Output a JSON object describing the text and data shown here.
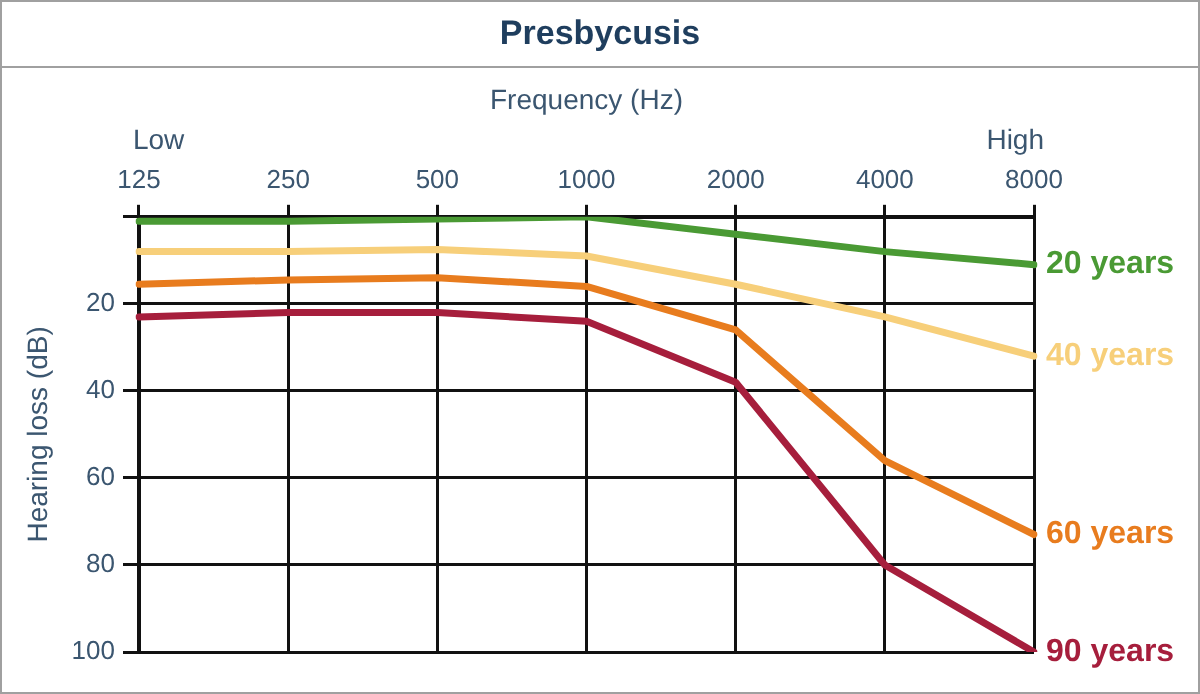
{
  "chart_data": {
    "type": "line",
    "title": "Presbycusis",
    "xlabel": "Frequency (Hz)",
    "ylabel": "Hearing loss (dB)",
    "categories": [
      "125",
      "250",
      "500",
      "1000",
      "2000",
      "4000",
      "8000"
    ],
    "series": [
      {
        "name": "20 years",
        "color": "#4a9a34",
        "values": [
          1,
          1,
          0.5,
          0,
          4,
          8,
          11
        ]
      },
      {
        "name": "40 years",
        "color": "#f7cf7a",
        "values": [
          8,
          8,
          7.5,
          9,
          15.5,
          23,
          32
        ]
      },
      {
        "name": "60 years",
        "color": "#e87c1e",
        "values": [
          15.5,
          14.5,
          14,
          16,
          26,
          56,
          73
        ]
      },
      {
        "name": "90 years",
        "color": "#a61e3c",
        "values": [
          23,
          22,
          22,
          24,
          38,
          80,
          100
        ]
      }
    ],
    "ylim": [
      100,
      0
    ],
    "yticks": [
      {
        "value": 0,
        "label": null
      },
      20,
      40,
      60,
      80,
      100
    ],
    "grid": true,
    "legend": false,
    "marker": "none",
    "line_style": "solid",
    "annotations": [
      "Low",
      "High"
    ]
  }
}
